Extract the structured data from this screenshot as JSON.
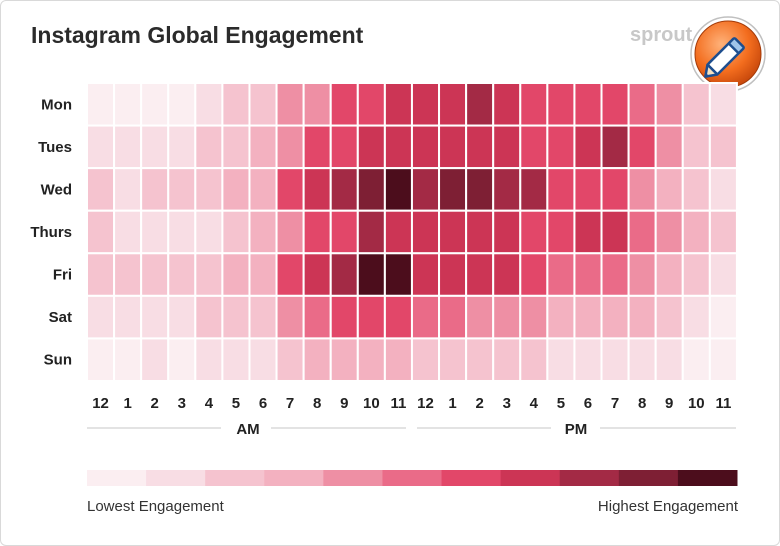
{
  "header": {
    "title": "Instagram Global Engagement",
    "brand": "sprout"
  },
  "chart_data": {
    "type": "heatmap",
    "title": "Instagram Global Engagement",
    "rows": [
      "Mon",
      "Tues",
      "Wed",
      "Thurs",
      "Fri",
      "Sat",
      "Sun"
    ],
    "columns": [
      "12",
      "1",
      "2",
      "3",
      "4",
      "5",
      "6",
      "7",
      "8",
      "9",
      "10",
      "11",
      "12",
      "1",
      "2",
      "3",
      "4",
      "5",
      "6",
      "7",
      "8",
      "9",
      "10",
      "11"
    ],
    "period_labels": [
      "AM",
      "PM"
    ],
    "scale": {
      "levels": 11,
      "colors": [
        "#fbeef1",
        "#f8dde4",
        "#f5c3cf",
        "#f3b1c0",
        "#ee8fa4",
        "#ea6b88",
        "#e24769",
        "#cc3555",
        "#a32a45",
        "#7e1f34",
        "#4c0d1c"
      ],
      "min_label": "Lowest Engagement",
      "max_label": "Highest Engagement"
    },
    "values": [
      [
        0,
        0,
        0,
        0,
        1,
        2,
        2,
        4,
        4,
        6,
        6,
        7,
        7,
        7,
        8,
        7,
        6,
        6,
        6,
        6,
        5,
        4,
        2,
        1
      ],
      [
        1,
        1,
        1,
        1,
        2,
        2,
        3,
        4,
        6,
        6,
        7,
        7,
        7,
        7,
        7,
        7,
        6,
        6,
        7,
        8,
        6,
        4,
        2,
        2
      ],
      [
        2,
        1,
        2,
        2,
        2,
        3,
        3,
        6,
        7,
        8,
        9,
        10,
        8,
        9,
        9,
        8,
        8,
        6,
        6,
        6,
        4,
        3,
        2,
        1
      ],
      [
        2,
        1,
        1,
        1,
        1,
        2,
        3,
        4,
        6,
        6,
        8,
        7,
        7,
        7,
        7,
        7,
        6,
        6,
        7,
        7,
        5,
        4,
        3,
        2
      ],
      [
        2,
        2,
        2,
        2,
        2,
        3,
        3,
        6,
        7,
        8,
        10,
        10,
        7,
        7,
        7,
        7,
        6,
        5,
        5,
        5,
        4,
        3,
        2,
        1
      ],
      [
        1,
        1,
        1,
        1,
        2,
        2,
        2,
        4,
        5,
        6,
        6,
        6,
        5,
        5,
        4,
        4,
        4,
        3,
        3,
        3,
        3,
        2,
        1,
        0
      ],
      [
        0,
        0,
        1,
        0,
        1,
        1,
        1,
        2,
        3,
        3,
        3,
        3,
        2,
        2,
        2,
        2,
        2,
        1,
        1,
        1,
        1,
        1,
        0,
        0
      ]
    ]
  }
}
